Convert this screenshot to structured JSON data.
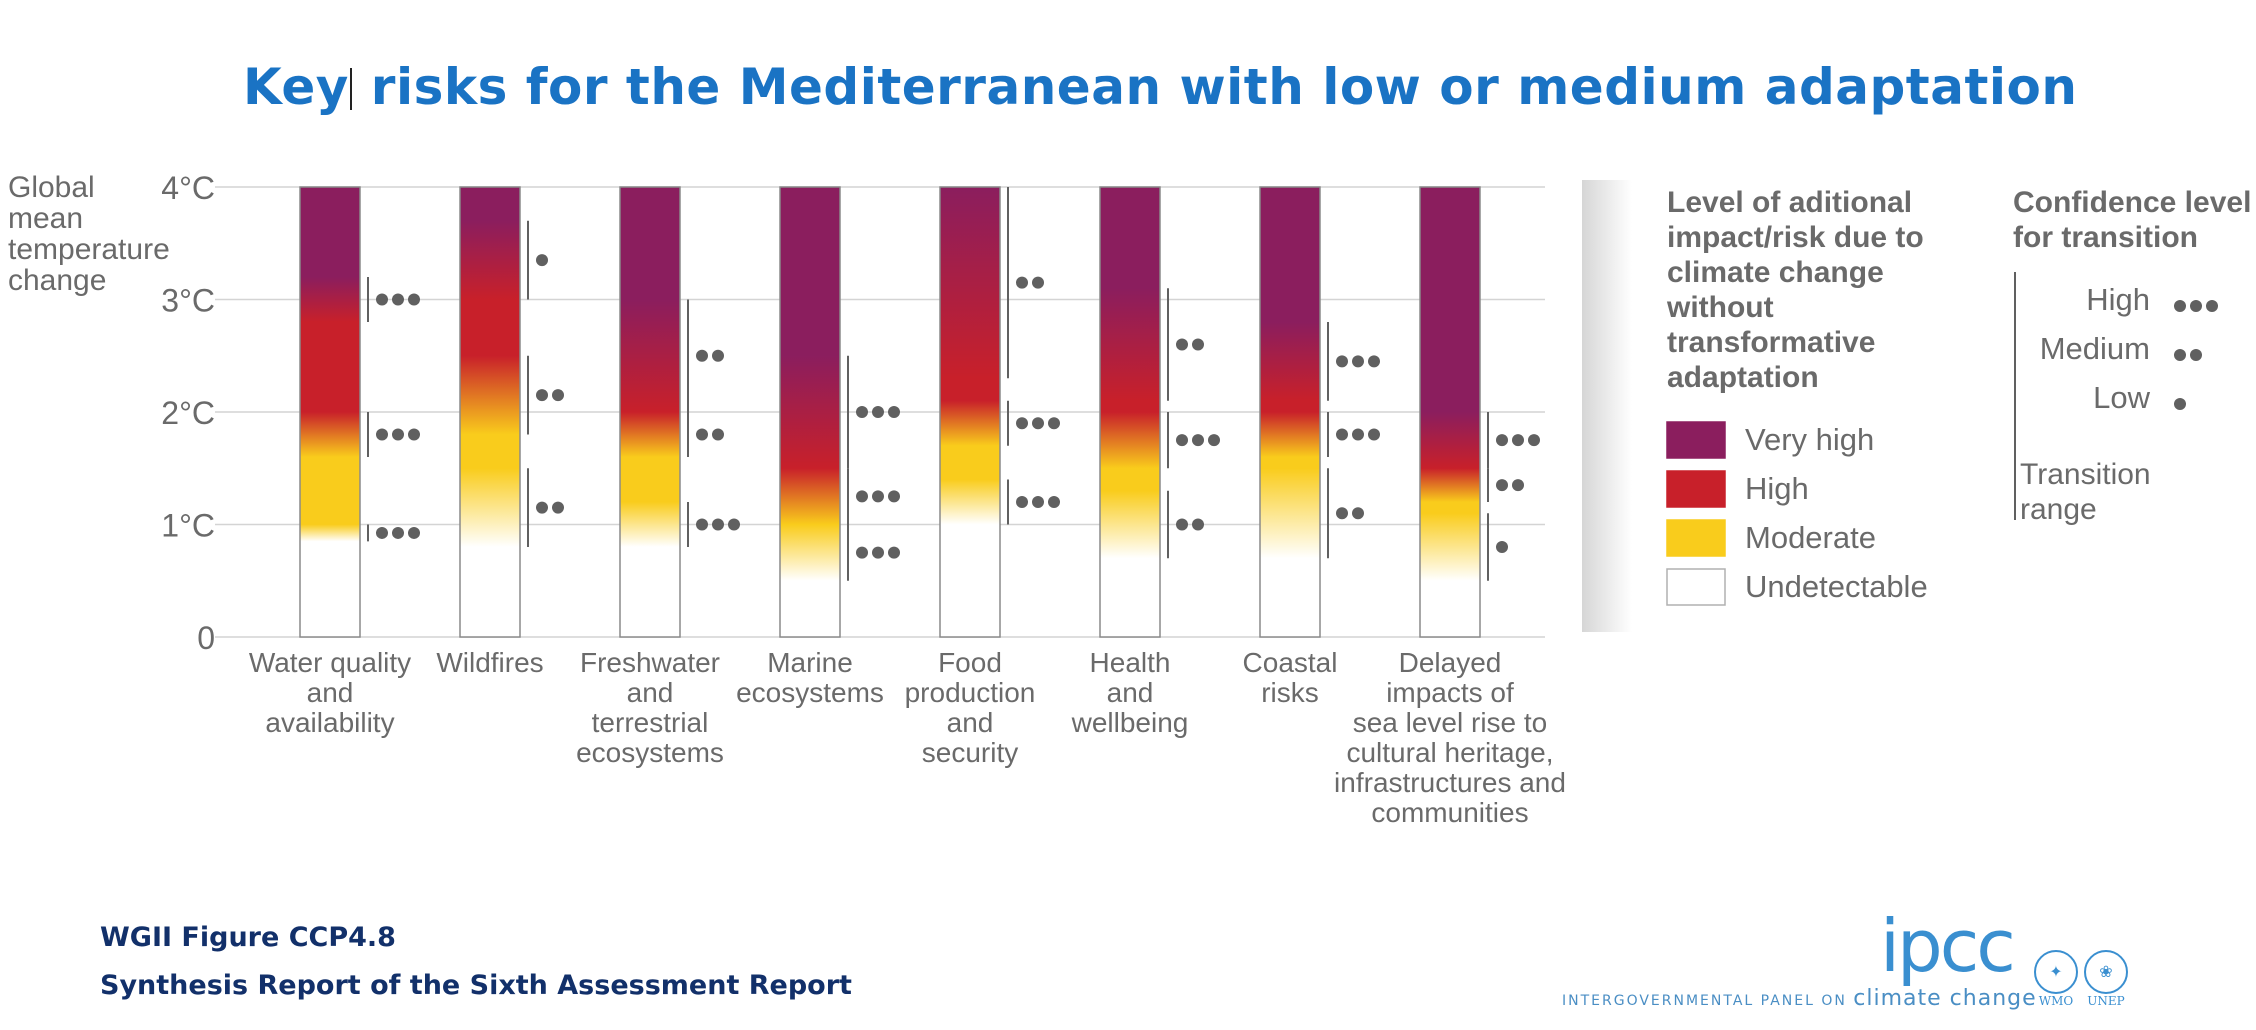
{
  "title_part1": "Key",
  "title_part2": " risks for the Mediterranean with low or medium adaptation",
  "footer": {
    "figure_ref": "WGII Figure CCP4.8",
    "report": "Synthesis Report of the Sixth Assessment Report"
  },
  "ipcc": {
    "logo": "ipcc",
    "tagline_small": "INTERGOVERNMENTAL PANEL ON ",
    "tagline_big": "climate change",
    "wmo": "WMO",
    "unep": "UNEP"
  },
  "colors": {
    "title": "#1a73c4",
    "very_high": "#8b1e5e",
    "high": "#c8202a",
    "moderate": "#f9cc1c",
    "undetectable": "#ffffff",
    "footer": "#12306a"
  },
  "chart_data": {
    "type": "bar",
    "ylabel": [
      "Global",
      "mean",
      "temperature",
      "change"
    ],
    "yticks": [
      {
        "value": 0,
        "label": "0"
      },
      {
        "value": 1,
        "label": "1°C"
      },
      {
        "value": 2,
        "label": "2°C"
      },
      {
        "value": 3,
        "label": "3°C"
      },
      {
        "value": 4,
        "label": "4°C"
      }
    ],
    "ylim": [
      0,
      4
    ],
    "grid": true,
    "legend": {
      "title": [
        "Level of aditional",
        "impact/risk due to",
        "climate change",
        "without",
        "transformative",
        "adaptation"
      ],
      "items": [
        {
          "label": "Very high",
          "color": "#8b1e5e"
        },
        {
          "label": "High",
          "color": "#c8202a"
        },
        {
          "label": "Moderate",
          "color": "#f9cc1c"
        },
        {
          "label": "Undetectable",
          "color": "#ffffff"
        }
      ]
    },
    "confidence_legend": {
      "title": [
        "Confidence level",
        "for transition"
      ],
      "items": [
        {
          "label": "High",
          "dots": 3
        },
        {
          "label": "Medium",
          "dots": 2
        },
        {
          "label": "Low",
          "dots": 1
        }
      ],
      "range_label": [
        "Transition",
        "range"
      ]
    },
    "categories": [
      {
        "label": [
          "Water quality",
          "and",
          "availability"
        ],
        "transitions": [
          {
            "from": "undetectable",
            "to": "moderate",
            "low": 0.85,
            "high": 1.0,
            "confidence": 3
          },
          {
            "from": "moderate",
            "to": "high",
            "low": 1.6,
            "high": 2.0,
            "confidence": 3
          },
          {
            "from": "high",
            "to": "very_high",
            "low": 2.8,
            "high": 3.2,
            "confidence": 3
          }
        ]
      },
      {
        "label": [
          "Wildfires"
        ],
        "transitions": [
          {
            "from": "undetectable",
            "to": "moderate",
            "low": 0.8,
            "high": 1.5,
            "confidence": 2
          },
          {
            "from": "moderate",
            "to": "high",
            "low": 1.8,
            "high": 2.5,
            "confidence": 2
          },
          {
            "from": "high",
            "to": "very_high",
            "low": 3.0,
            "high": 3.7,
            "confidence": 1
          }
        ]
      },
      {
        "label": [
          "Freshwater",
          "and",
          "terrestrial",
          "ecosystems"
        ],
        "transitions": [
          {
            "from": "undetectable",
            "to": "moderate",
            "low": 0.8,
            "high": 1.2,
            "confidence": 3
          },
          {
            "from": "moderate",
            "to": "high",
            "low": 1.6,
            "high": 2.0,
            "confidence": 2
          },
          {
            "from": "high",
            "to": "very_high",
            "low": 2.0,
            "high": 3.0,
            "confidence": 2
          }
        ]
      },
      {
        "label": [
          "Marine",
          "ecosystems"
        ],
        "transitions": [
          {
            "from": "undetectable",
            "to": "moderate",
            "low": 0.5,
            "high": 1.0,
            "confidence": 3
          },
          {
            "from": "moderate",
            "to": "high",
            "low": 1.0,
            "high": 1.5,
            "confidence": 3
          },
          {
            "from": "high",
            "to": "very_high",
            "low": 1.5,
            "high": 2.5,
            "confidence": 3
          }
        ]
      },
      {
        "label": [
          "Food",
          "production",
          "and",
          "security"
        ],
        "transitions": [
          {
            "from": "undetectable",
            "to": "moderate",
            "low": 1.0,
            "high": 1.4,
            "confidence": 3
          },
          {
            "from": "moderate",
            "to": "high",
            "low": 1.7,
            "high": 2.1,
            "confidence": 3
          },
          {
            "from": "high",
            "to": "very_high",
            "low": 2.3,
            "high": 4.0,
            "confidence": 2
          }
        ]
      },
      {
        "label": [
          "Health",
          "and",
          "wellbeing"
        ],
        "transitions": [
          {
            "from": "undetectable",
            "to": "moderate",
            "low": 0.7,
            "high": 1.3,
            "confidence": 2
          },
          {
            "from": "moderate",
            "to": "high",
            "low": 1.5,
            "high": 2.0,
            "confidence": 3
          },
          {
            "from": "high",
            "to": "very_high",
            "low": 2.1,
            "high": 3.1,
            "confidence": 2
          }
        ]
      },
      {
        "label": [
          "Coastal",
          "risks"
        ],
        "transitions": [
          {
            "from": "undetectable",
            "to": "moderate",
            "low": 0.7,
            "high": 1.5,
            "confidence": 2
          },
          {
            "from": "moderate",
            "to": "high",
            "low": 1.6,
            "high": 2.0,
            "confidence": 3
          },
          {
            "from": "high",
            "to": "very_high",
            "low": 2.1,
            "high": 2.8,
            "confidence": 3
          }
        ]
      },
      {
        "label": [
          "Delayed",
          "impacts of",
          "sea level rise to",
          "cultural heritage,",
          "infrastructures and",
          "communities"
        ],
        "transitions": [
          {
            "from": "undetectable",
            "to": "moderate",
            "low": 0.5,
            "high": 1.1,
            "confidence": 1
          },
          {
            "from": "moderate",
            "to": "high",
            "low": 1.2,
            "high": 1.5,
            "confidence": 2
          },
          {
            "from": "high",
            "to": "very_high",
            "low": 1.5,
            "high": 2.0,
            "confidence": 3
          }
        ]
      }
    ]
  }
}
